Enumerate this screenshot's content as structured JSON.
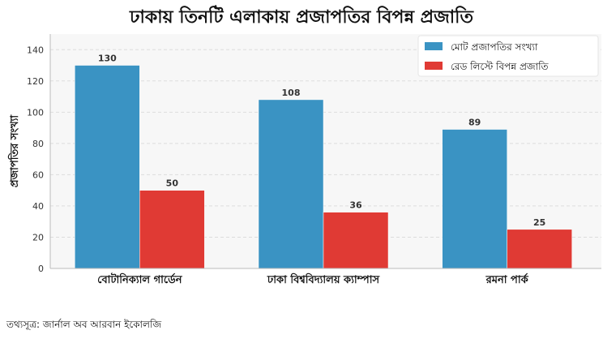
{
  "chart_data": {
    "type": "bar",
    "title": "ঢাকায় তিনটি এলাকায় প্রজাপতির বিপন্ন প্রজাতি",
    "ylabel": "প্রজাপতির সংখ্যা",
    "xlabel": "",
    "categories": [
      "বোটানিক্যাল গার্ডেন",
      "ঢাকা বিশ্ববিদ্যালয় ক্যাম্পাস",
      "রমনা পার্ক"
    ],
    "series": [
      {
        "name": "মোট প্রজাপতির সংখ্যা",
        "values": [
          130,
          108,
          89
        ],
        "color": "#3a93c3"
      },
      {
        "name": "রেড লিস্টে বিপন্ন প্রজাতি",
        "values": [
          50,
          36,
          25
        ],
        "color": "#e03a34"
      }
    ],
    "ylim": [
      0,
      150
    ],
    "yticks": [
      0,
      20,
      40,
      60,
      80,
      100,
      120,
      140
    ],
    "grid": true,
    "legend_position": "top-right",
    "data_labels": true
  },
  "source_note": "তথ্যসূত্র: জার্নাল অব আরবান ইকোলজি",
  "colors": {
    "plot_background": "#f7f7f7",
    "grid": "#dddddd"
  }
}
